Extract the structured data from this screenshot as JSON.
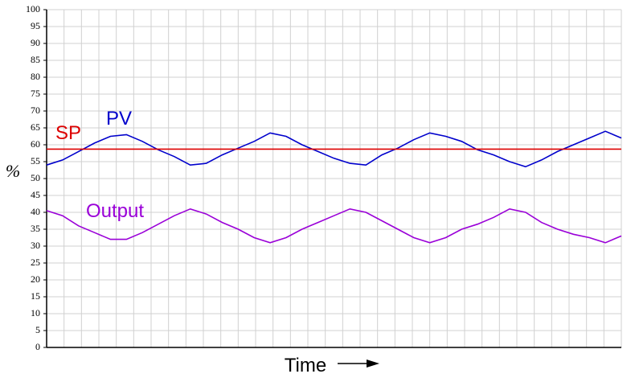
{
  "chart_data": {
    "type": "line",
    "x_label": "Time",
    "y_label": "%",
    "categories": [
      null,
      null,
      null,
      null,
      null,
      null,
      null,
      null,
      null,
      null,
      null,
      null,
      null,
      null,
      null,
      null,
      null,
      null,
      null,
      null,
      null,
      null,
      null,
      null,
      null,
      null,
      null,
      null,
      null,
      null,
      null,
      null,
      null,
      null,
      null,
      null,
      null
    ],
    "series": [
      {
        "name": "PV",
        "color": "#0000cc",
        "values": [
          54,
          55.5,
          58,
          60.5,
          62.5,
          63,
          61,
          58.5,
          56.5,
          54,
          54.5,
          57,
          59,
          61,
          63.5,
          62.5,
          60,
          58,
          56,
          54.5,
          54,
          57,
          59,
          61.5,
          63.5,
          62.5,
          61,
          58.5,
          57,
          55,
          53.5,
          55.5,
          58,
          60,
          62,
          64,
          62
        ]
      },
      {
        "name": "SP",
        "color": "#dd0000",
        "values": [
          58.7,
          58.7,
          58.7,
          58.7,
          58.7,
          58.7,
          58.7,
          58.7,
          58.7,
          58.7,
          58.7,
          58.7,
          58.7,
          58.7,
          58.7,
          58.7,
          58.7,
          58.7,
          58.7,
          58.7,
          58.7,
          58.7,
          58.7,
          58.7,
          58.7,
          58.7,
          58.7,
          58.7,
          58.7,
          58.7,
          58.7,
          58.7,
          58.7,
          58.7,
          58.7,
          58.7,
          58.7
        ]
      },
      {
        "name": "Output",
        "color": "#9a00d8",
        "values": [
          40.5,
          39,
          36,
          34,
          32,
          32,
          34,
          36.5,
          39,
          41,
          39.5,
          37,
          35,
          32.5,
          31,
          32.5,
          35,
          37,
          39,
          41,
          40,
          37.5,
          35,
          32.5,
          31,
          32.5,
          35,
          36.5,
          38.5,
          41,
          40,
          37,
          35,
          33.5,
          32.5,
          31,
          33
        ]
      }
    ],
    "ylim": [
      0,
      100
    ],
    "yticks": [
      0,
      5,
      10,
      15,
      20,
      25,
      30,
      35,
      40,
      45,
      50,
      55,
      60,
      65,
      70,
      75,
      80,
      85,
      90,
      95,
      100
    ],
    "grid": true
  }
}
